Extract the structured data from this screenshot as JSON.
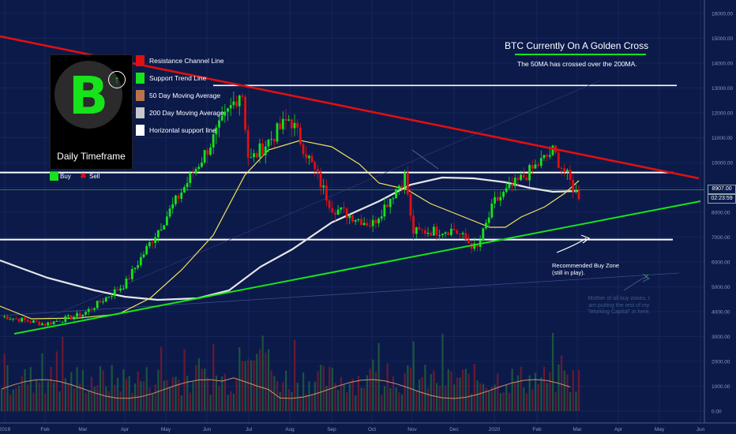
{
  "chart_data": {
    "type": "candlestick",
    "title": "BTC Currently On A Golden Cross",
    "subtitle": "The 50MA has crossed over the 200MA.",
    "timeframe_label": "Daily Timeframe",
    "y_ticks": [
      16000,
      15000,
      14000,
      13000,
      12000,
      11000,
      10000,
      9000,
      8000,
      7000,
      6000,
      5000,
      4000,
      3000,
      2000,
      1000,
      0
    ],
    "y_tick_labels": [
      "16000.00",
      "15000.00",
      "14000.00",
      "13000.00",
      "12000.00",
      "11000.00",
      "10000.00",
      "9000.00",
      "8000.00",
      "7000.00",
      "6000.00",
      "5000.00",
      "4000.00",
      "3000.00",
      "2000.00",
      "1000.00",
      "0.00"
    ],
    "x_labels": [
      "2019",
      "Feb",
      "Mar",
      "Apr",
      "May",
      "Jun",
      "Jul",
      "Aug",
      "Sep",
      "Oct",
      "Nov",
      "Dec",
      "2020",
      "Feb",
      "Mar",
      "Apr",
      "May",
      "Jun"
    ],
    "last_price": "8907.00",
    "countdown": "02:23:59",
    "legend": [
      {
        "label": "Resistance Channel Line",
        "color": "#e01010"
      },
      {
        "label": "Support Trend Line",
        "color": "#17e31a"
      },
      {
        "label": "50 Day Moving Average",
        "color": "#b8734a"
      },
      {
        "label": "200 Day Moving Average",
        "color": "#c8c8c8"
      },
      {
        "label": "Horizontal support line",
        "color": "#ffffff"
      }
    ],
    "signals": {
      "buy": "Buy",
      "sell": "Sell"
    },
    "annotations": {
      "buy_zone": [
        "Recommended Buy Zone",
        "(still in play)."
      ],
      "mother_zone": [
        "Mother of all buy zones, I",
        "am putting the rest of my",
        "\"Working Capital\" in here."
      ]
    },
    "price_path": [
      [
        "2019-01",
        3800
      ],
      [
        "2019-02",
        3500
      ],
      [
        "2019-03",
        3900
      ],
      [
        "2019-04",
        5100
      ],
      [
        "2019-05",
        7800
      ],
      [
        "2019-06",
        10500
      ],
      [
        "2019-06-26",
        13000
      ],
      [
        "2019-07",
        10000
      ],
      [
        "2019-08",
        11800
      ],
      [
        "2019-09",
        8200
      ],
      [
        "2019-10",
        7500
      ],
      [
        "2019-10-26",
        9500
      ],
      [
        "2019-11",
        7200
      ],
      [
        "2019-12",
        7300
      ],
      [
        "2019-12-18",
        6500
      ],
      [
        "2020-01",
        8400
      ],
      [
        "2020-02-13",
        10450
      ],
      [
        "2020-03",
        8700
      ]
    ],
    "volume_scale_max": 3000,
    "horizontal_lines": [
      13100,
      9600,
      6900
    ],
    "colors": {
      "bull": "#17e31a",
      "bear": "#e01010",
      "ma50": "#f3e35a",
      "ma200": "#e6e6e6",
      "background": "#0c1a4a",
      "grid": "#1e2e63"
    }
  }
}
